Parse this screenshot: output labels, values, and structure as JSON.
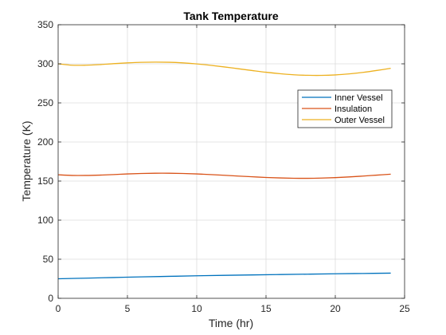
{
  "chart_data": {
    "type": "line",
    "title": "Tank Temperature",
    "xlabel": "Time (hr)",
    "ylabel": "Temperature (K)",
    "xlim": [
      0,
      25
    ],
    "ylim": [
      0,
      350
    ],
    "xticks": [
      0,
      5,
      10,
      15,
      20,
      25
    ],
    "yticks": [
      0,
      50,
      100,
      150,
      200,
      250,
      300,
      350
    ],
    "grid": true,
    "legend_position": "top-right",
    "series": [
      {
        "name": "Inner Vessel",
        "color": "#0072BD",
        "x": [
          0,
          2,
          4,
          6,
          8,
          10,
          12,
          14,
          16,
          18,
          20,
          22,
          24
        ],
        "y": [
          25,
          25.8,
          26.6,
          27.4,
          28.1,
          28.8,
          29.4,
          29.9,
          30.4,
          30.9,
          31.4,
          31.8,
          32.2
        ]
      },
      {
        "name": "Insulation",
        "color": "#D95319",
        "x": [
          0,
          1,
          2,
          3,
          4,
          5,
          6,
          7,
          8,
          9,
          10,
          11,
          12,
          13,
          14,
          15,
          16,
          17,
          18,
          19,
          20,
          21,
          22,
          23,
          24
        ],
        "y": [
          158,
          157.2,
          157.2,
          157.6,
          158.3,
          159.1,
          159.7,
          160.0,
          160.0,
          159.7,
          159.1,
          158.3,
          157.4,
          156.4,
          155.5,
          154.6,
          154.0,
          153.6,
          153.5,
          153.8,
          154.4,
          155.3,
          156.4,
          157.6,
          158.8
        ]
      },
      {
        "name": "Outer Vessel",
        "color": "#EDB120",
        "x": [
          0,
          1,
          2,
          3,
          4,
          5,
          6,
          7,
          8,
          9,
          10,
          11,
          12,
          13,
          14,
          15,
          16,
          17,
          18,
          19,
          20,
          21,
          22,
          23,
          24
        ],
        "y": [
          300,
          298.2,
          298.2,
          299.0,
          300.2,
          301.2,
          301.9,
          302.2,
          302.0,
          301.2,
          299.9,
          298.1,
          296.0,
          293.7,
          291.4,
          289.2,
          287.4,
          286.0,
          285.3,
          285.2,
          285.8,
          287.1,
          289.0,
          291.5,
          294.3
        ]
      }
    ]
  }
}
